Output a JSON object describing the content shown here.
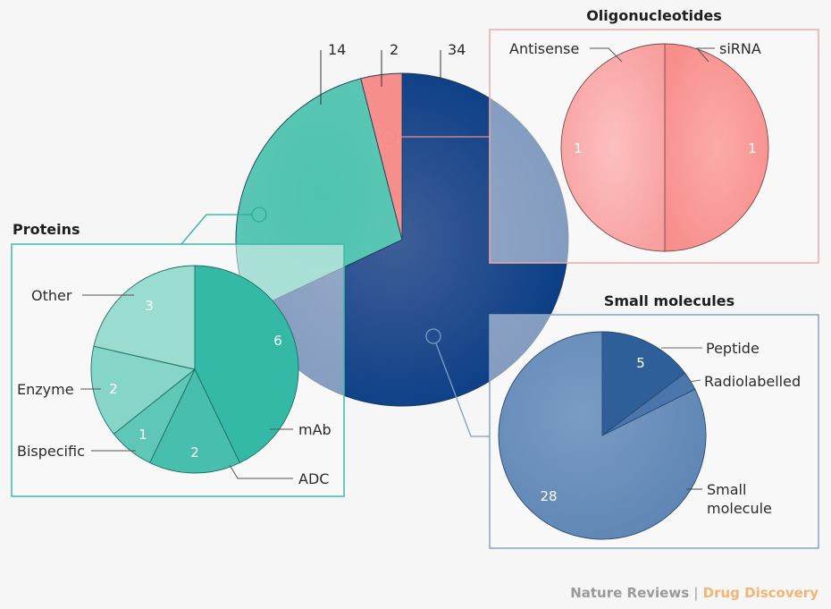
{
  "chart_data": [
    {
      "type": "pie",
      "name": "overview",
      "title": "",
      "categories": [
        "Small molecules",
        "Proteins",
        "Oligonucleotides"
      ],
      "values": [
        34,
        14,
        2
      ],
      "value_labels": [
        "34",
        "14",
        "2"
      ],
      "colors": [
        "#0d3f86",
        "#4cc2ad",
        "#f7908c"
      ]
    },
    {
      "type": "pie",
      "name": "proteins",
      "title": "Proteins",
      "categories": [
        "mAb",
        "ADC",
        "Bispecific",
        "Enzyme",
        "Other"
      ],
      "values": [
        6,
        2,
        1,
        2,
        3
      ],
      "value_labels": [
        "6",
        "2",
        "1",
        "2",
        "3"
      ],
      "colors": [
        "#34b9a6",
        "#48bfae",
        "#5ec7b6",
        "#86d5c9",
        "#9bdcd1"
      ],
      "accent": "#2bb3a4"
    },
    {
      "type": "pie",
      "name": "oligonucleotides",
      "title": "Oligonucleotides",
      "categories": [
        "siRNA",
        "Antisense"
      ],
      "values": [
        1,
        1
      ],
      "value_labels": [
        "1",
        "1"
      ],
      "colors": [
        "#f9928f",
        "#fbaaaa"
      ],
      "accent": "#f4a3a3"
    },
    {
      "type": "pie",
      "name": "small-molecules",
      "title": "Small molecules",
      "categories": [
        "Peptide",
        "Radiolabelled",
        "Small molecule"
      ],
      "values": [
        5,
        1,
        28
      ],
      "value_labels": [
        "5",
        "",
        "28"
      ],
      "colors": [
        "#2f5f99",
        "#4a76ab",
        "#6a8fba"
      ],
      "accent": "#7e9dc2"
    }
  ],
  "labels": {
    "small_molecule_line1": "Small",
    "small_molecule_line2": "molecule"
  },
  "credit": {
    "publisher": "Nature Reviews",
    "separator": "|",
    "journal": "Drug Discovery"
  }
}
